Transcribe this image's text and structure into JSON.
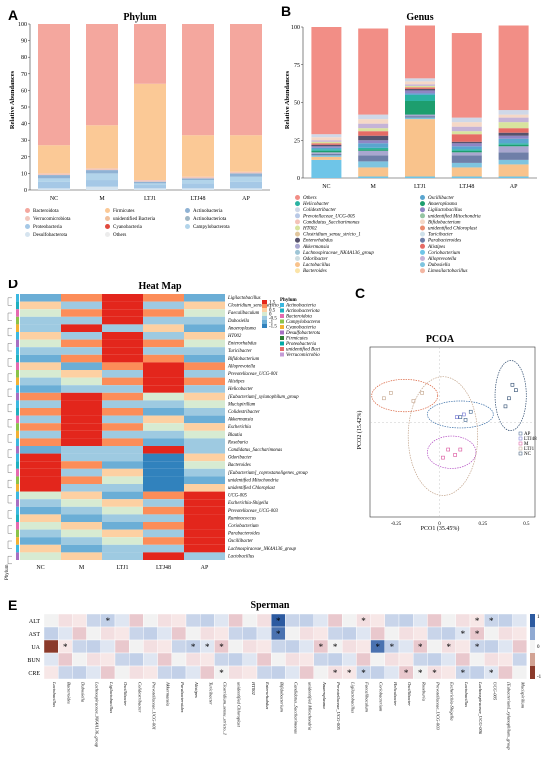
{
  "panels": {
    "a": {
      "letter": "A",
      "title": "Phylum",
      "ylabel": "Relative Abundances",
      "yticks": [
        "0",
        "10",
        "20",
        "30",
        "40",
        "50",
        "60",
        "70",
        "80",
        "90",
        "100"
      ]
    },
    "b": {
      "letter": "B",
      "title": "Genus",
      "ylabel": "Relative Abundances",
      "yticks": [
        "0",
        "25",
        "50",
        "75",
        "100"
      ]
    },
    "c": {
      "letter": "C",
      "title": "PCOA",
      "xlabel": "PCO1 (35.45%)",
      "ylabel": "PCO2 (15.42%)",
      "xticks": [
        "-0.25",
        "0",
        "0.25",
        "0.5"
      ]
    },
    "d": {
      "letter": "D",
      "title": "Heat Map",
      "legend_title": "Phylum",
      "side_label": "Phylum"
    },
    "e": {
      "letter": "E",
      "title": "Sperman"
    }
  },
  "colors": {
    "others": "#f28e86",
    "firm": "#fbc996",
    "bact": "#f4a79e",
    "verr": "#f1c7bd",
    "prot": "#a5c8e6",
    "desul": "#d6e4ef",
    "unclass": "#f0c09c",
    "cyano": "#e04a3e",
    "acti": "#8fb2d4",
    "other2": "#ececec",
    "campy": "#b2d4ea"
  },
  "chart_data": [
    {
      "type": "bar",
      "title": "Phylum",
      "ylabel": "Relative Abundances",
      "ylim": [
        0,
        100
      ],
      "categories": [
        "NC",
        "M",
        "LTJ1",
        "LTJ48",
        "AP"
      ],
      "legend": [
        {
          "name": "Bacteroidota",
          "color": "#f4a79e"
        },
        {
          "name": "Firmicutes",
          "color": "#fbc996"
        },
        {
          "name": "Actinobacteria",
          "color": "#8fb2d4"
        },
        {
          "name": "Verrucomicrobiota",
          "color": "#f1c7bd"
        },
        {
          "name": "unidentified Bacteria",
          "color": "#f0c09c"
        },
        {
          "name": "Actinobacteriota",
          "color": "#9fb6c4"
        },
        {
          "name": "Proteobacteria",
          "color": "#a5c8e6"
        },
        {
          "name": "Cyanobacteria",
          "color": "#e04a3e"
        },
        {
          "name": "Campylobacterota",
          "color": "#b2d4ea"
        },
        {
          "name": "Desulfobacterota",
          "color": "#d6e4ef"
        },
        {
          "name": "Others",
          "color": "#ececec"
        }
      ],
      "series": [
        {
          "name": "Desulfobacterota",
          "color": "#d6e4ef",
          "values": [
            1,
            2,
            1,
            1,
            1
          ]
        },
        {
          "name": "Proteobacteria",
          "color": "#a5c8e6",
          "values": [
            4,
            4,
            2,
            3,
            4
          ]
        },
        {
          "name": "Campylobacterota",
          "color": "#b2d4ea",
          "values": [
            2,
            4,
            1,
            2,
            3
          ]
        },
        {
          "name": "Actinobacteria",
          "color": "#8fb2d4",
          "values": [
            2,
            2,
            1,
            1,
            2
          ]
        },
        {
          "name": "Verrucomicrobiota",
          "color": "#f1c7bd",
          "values": [
            1,
            1,
            1,
            1,
            1
          ]
        },
        {
          "name": "Firmicutes",
          "color": "#fbc996",
          "values": [
            17,
            26,
            58,
            25,
            22
          ]
        },
        {
          "name": "Bacteroidota",
          "color": "#f4a79e",
          "values": [
            73,
            61,
            36,
            67,
            67
          ]
        }
      ]
    },
    {
      "type": "bar",
      "title": "Genus",
      "ylabel": "Relative Abundances",
      "ylim": [
        0,
        100
      ],
      "categories": [
        "NC",
        "M",
        "LTJ1",
        "LTJ48",
        "AP"
      ],
      "legend": [
        {
          "name": "Others",
          "color": "#f28e86"
        },
        {
          "name": "Oscillibacter",
          "color": "#5aa5cf"
        },
        {
          "name": "Helicobacter",
          "color": "#2bb3a3"
        },
        {
          "name": "Anaeroplasma",
          "color": "#1d9e6e"
        },
        {
          "name": "Colidextribacter",
          "color": "#cfd8e8"
        },
        {
          "name": "Ligilactobacillus",
          "color": "#8f86c4"
        },
        {
          "name": "Prevotellaceae_UCG-005",
          "color": "#b9c9e6"
        },
        {
          "name": "unidentified Mitochondria",
          "color": "#95c5a3"
        },
        {
          "name": "Candidatus_Saccharimonas",
          "color": "#f4c3b8"
        },
        {
          "name": "Bifidobacterium",
          "color": "#f5d8c7"
        },
        {
          "name": "HT002",
          "color": "#d8e39e"
        },
        {
          "name": "unidentified Chloroplast",
          "color": "#ea8c6f"
        },
        {
          "name": "Clostridium_sensu_stricto_1",
          "color": "#e1c69d"
        },
        {
          "name": "Turicibacter",
          "color": "#cfe1ea"
        },
        {
          "name": "Enterorhabdus",
          "color": "#56526d"
        },
        {
          "name": "Parabacteroides",
          "color": "#6f7fa8"
        },
        {
          "name": "Akkermansia",
          "color": "#a9a7cf"
        },
        {
          "name": "Alistipes",
          "color": "#e66b65"
        },
        {
          "name": "Lachnospiraceae_NK4A136_group",
          "color": "#9ec5d6"
        },
        {
          "name": "Coriobacterium",
          "color": "#6ec5e8"
        },
        {
          "name": "Odoribacter",
          "color": "#cfdde0"
        },
        {
          "name": "Alloprevotella",
          "color": "#c5b3d7"
        },
        {
          "name": "Lactobacillus",
          "color": "#f9c38c"
        },
        {
          "name": "Dubosiella",
          "color": "#7ec4df"
        },
        {
          "name": "Bacteroides",
          "color": "#fbe4a8"
        },
        {
          "name": "Limosilactobacillus",
          "color": "#f3b6a2"
        }
      ],
      "series": [
        {
          "name": "Coriobacterium",
          "color": "#6ec5e8",
          "values": [
            12,
            1,
            1,
            1,
            1
          ]
        },
        {
          "name": "Lactobacillus",
          "color": "#f9c38c",
          "values": [
            2,
            6,
            38,
            6,
            8
          ]
        },
        {
          "name": "Dubosiella",
          "color": "#7ec4df",
          "values": [
            1,
            4,
            1,
            3,
            3
          ]
        },
        {
          "name": "Parabacteroides",
          "color": "#6f7fa8",
          "values": [
            1,
            4,
            1,
            5,
            5
          ]
        },
        {
          "name": "Akkermansia",
          "color": "#a9a7cf",
          "values": [
            1,
            3,
            1,
            2,
            4
          ]
        },
        {
          "name": "Anaeroplasma",
          "color": "#1d9e6e",
          "values": [
            1,
            1,
            9,
            1,
            1
          ]
        },
        {
          "name": "Helicobacter",
          "color": "#2bb3a3",
          "values": [
            1,
            1,
            4,
            1,
            1
          ]
        },
        {
          "name": "Oscillibacter",
          "color": "#5aa5cf",
          "values": [
            1,
            3,
            1,
            2,
            3
          ]
        },
        {
          "name": "Ligilactobacillus",
          "color": "#8f86c4",
          "values": [
            1,
            2,
            2,
            2,
            2
          ]
        },
        {
          "name": "Enterorhabdus",
          "color": "#56526d",
          "values": [
            1,
            3,
            1,
            1,
            2
          ]
        },
        {
          "name": "Alistipes",
          "color": "#e66b65",
          "values": [
            1,
            3,
            1,
            5,
            3
          ]
        },
        {
          "name": "HT002",
          "color": "#d8e39e",
          "values": [
            1,
            2,
            1,
            2,
            4
          ]
        },
        {
          "name": "Alloprevotella",
          "color": "#c5b3d7",
          "values": [
            1,
            3,
            1,
            3,
            3
          ]
        },
        {
          "name": "Bifidobacterium",
          "color": "#f5d8c7",
          "values": [
            2,
            3,
            2,
            3,
            2
          ]
        },
        {
          "name": "Colidextribacter",
          "color": "#cfd8e8",
          "values": [
            2,
            3,
            2,
            3,
            3
          ]
        },
        {
          "name": "Others",
          "color": "#f28e86",
          "values": [
            71,
            57,
            35,
            56,
            56
          ]
        }
      ]
    },
    {
      "type": "heatmap",
      "title": "Heat Map",
      "columns": [
        "NC",
        "M",
        "LTJ1",
        "LTJ48",
        "AP"
      ],
      "rows": [
        "Ligilactobacillus",
        "Clostridium_sensu_stricto_1",
        "Faecalibaculum",
        "Dubosiella",
        "Anaeroplasma",
        "HT002",
        "Enterorhabdus",
        "Turicibacter",
        "Bifidobacterium",
        "Alloprevotella",
        "Prevotellaceae_UCG-001",
        "Alistipes",
        "Helicobacter",
        "[Eubacterium]_xylanophilum_group",
        "Mucispirillum",
        "Colidextribacter",
        "Akkermansia",
        "Escherichia",
        "Blautia",
        "Roseburia",
        "Candidatus_Saccharimonas",
        "Odoribacter",
        "Bacteroides",
        "[Eubacterium]_coprostanoligenes_group",
        "unidentified Mitochondria",
        "unidentified Chloroplast",
        "UCG-005",
        "Escherichia-Shigella",
        "Prevotellaceae_UCG-003",
        "Ruminococcus",
        "Coriobacterium",
        "Parabacteroides",
        "Oscillibacter",
        "Lachnospiraceae_NK4A136_group",
        "Lactobacillus"
      ],
      "legend": [
        "Actinobacteria",
        "Actinobacteriota",
        "Bacteroidota",
        "Campylobacterota",
        "Cyanobacteria",
        "Desulfobacterota",
        "Firmicutes",
        "Proteobacteria",
        "unidentified Bacteria",
        "Verrucomicrobiota"
      ],
      "scale": [
        "1.5",
        "1",
        "0.5",
        "0",
        "-0.5",
        "-1",
        "-1.5"
      ]
    },
    {
      "type": "scatter",
      "title": "PCOA",
      "xlabel": "PCO1 (35.45%)",
      "ylabel": "PCO2 (15.42%)",
      "xlim": [
        -0.4,
        0.55
      ],
      "ylim": [
        -0.35,
        0.28
      ],
      "groups": [
        {
          "name": "AP",
          "color": "#3a5f8a",
          "points": [
            [
              0.12,
              0.02
            ],
            [
              0.18,
              0.04
            ],
            [
              0.15,
              0.01
            ]
          ]
        },
        {
          "name": "LTJ48",
          "color": "#6b6fd1",
          "points": [
            [
              0.1,
              0.02
            ],
            [
              0.14,
              0.03
            ]
          ]
        },
        {
          "name": "M",
          "color": "#d94e9a",
          "points": [
            [
              0.05,
              -0.1
            ],
            [
              0.09,
              -0.12
            ],
            [
              0.12,
              -0.1
            ],
            [
              0.02,
              -0.13
            ]
          ]
        },
        {
          "name": "LTJ1",
          "color": "#c2a38a",
          "points": [
            [
              -0.28,
              0.11
            ],
            [
              -0.1,
              0.11
            ],
            [
              -0.15,
              0.08
            ],
            [
              -0.32,
              0.09
            ]
          ]
        },
        {
          "name": "NC",
          "color": "#2c4a6e",
          "points": [
            [
              0.42,
              0.14
            ],
            [
              0.4,
              0.09
            ],
            [
              0.44,
              0.12
            ],
            [
              0.38,
              0.06
            ]
          ]
        }
      ]
    },
    {
      "type": "heatmap",
      "title": "Sperman",
      "rows": [
        "ALT",
        "AST",
        "UA",
        "BUN",
        "CRE"
      ],
      "columns": [
        "Lactobacillus",
        "Bacteroides",
        "Dubosiella",
        "Lachnospiraceae_NK4A136_group",
        "Ligilactobacillus",
        "Oscillibacter",
        "Colidextribacter",
        "Prevotellaceae_UCG-001",
        "Akkermansia",
        "Parabacteroides",
        "Alistipes",
        "Turicibacter",
        "Clostridium_sensu_stricto_1",
        "unidentified Chloroplast",
        "HT002",
        "Enterorhabdus",
        "Bifidobacterium",
        "Candidatus_Saccharimonas",
        "unidentified Mitochondria",
        "Anaeroplasma",
        "Prevotellaceae_UCG-005",
        "Ligilactobacillus",
        "Faecalibaculum",
        "Coriobacterium",
        "Helicobacter",
        "Oscillibacter",
        "Roseburia",
        "Prevotellaceae_UCG-003",
        "Escherichia-Shigella",
        "Lactobacillus",
        "Lachnospiraceae_UCG-006",
        "UCG-005",
        "[Eubacterium]_xylanophilum_group",
        "Mucispirillum"
      ],
      "scale": [
        "1",
        "0",
        "-1"
      ]
    }
  ]
}
